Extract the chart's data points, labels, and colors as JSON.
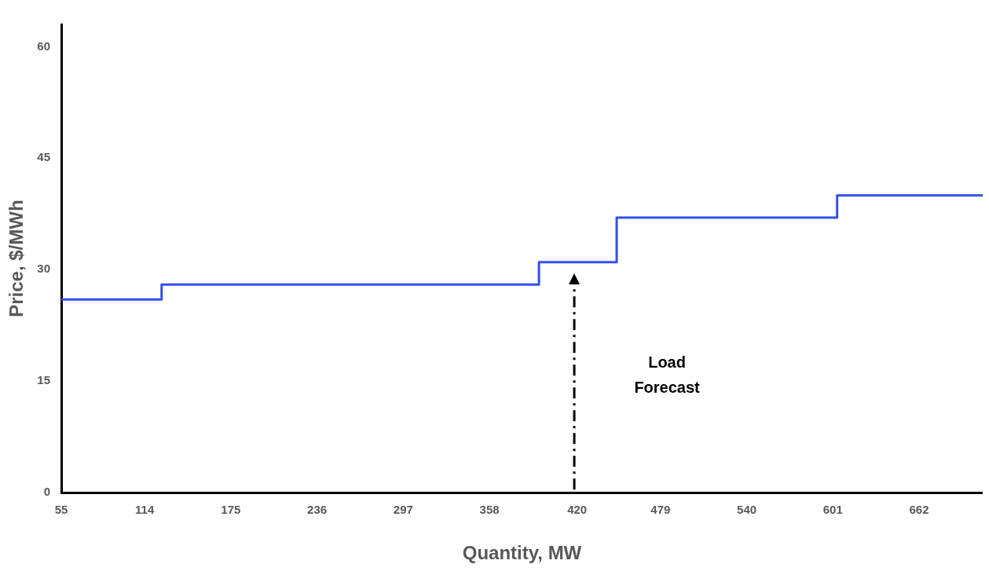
{
  "chart_data": {
    "type": "step",
    "xlabel": "Quantity, MW",
    "ylabel": "Price, $/MWh",
    "x": [
      55,
      126,
      393,
      448,
      604,
      707
    ],
    "series": [
      {
        "color": "#3050f0",
        "values": [
          26,
          28,
          31,
          37,
          40,
          40
        ]
      }
    ],
    "xlim": [
      55,
      707
    ],
    "xticks": [
      55,
      114,
      175,
      236,
      297,
      358,
      420,
      479,
      540,
      601,
      662
    ],
    "ylim": [
      0,
      63
    ],
    "yticks": [
      0,
      15,
      30,
      45,
      60
    ],
    "grid": false,
    "legend": false,
    "marker": "none",
    "line_style": "solid",
    "ref_lines": [
      {
        "axis": "x",
        "value": 418,
        "label": "Load Forecast",
        "color": "#000000",
        "line_style": "dashdot"
      }
    ]
  }
}
